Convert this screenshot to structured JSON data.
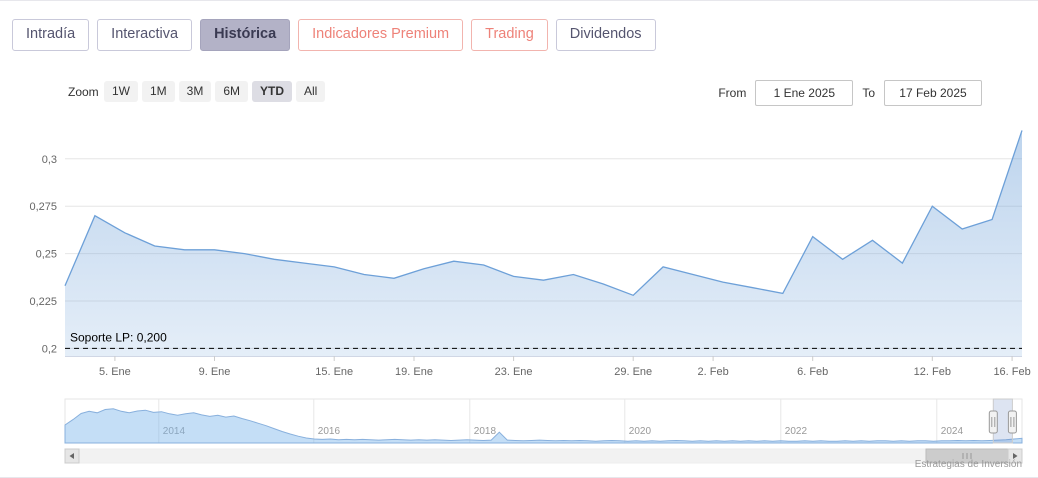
{
  "tabs": [
    {
      "label": "Intradía"
    },
    {
      "label": "Interactiva"
    },
    {
      "label": "Histórica",
      "active": true
    },
    {
      "label": "Indicadores Premium"
    },
    {
      "label": "Trading"
    },
    {
      "label": "Dividendos"
    }
  ],
  "range_selector": {
    "zoom_label": "Zoom",
    "buttons": [
      "1W",
      "1M",
      "3M",
      "6M",
      "YTD",
      "All"
    ],
    "selected": "YTD",
    "from_label": "From",
    "from_value": "1 Ene 2025",
    "to_label": "To",
    "to_value": "17 Feb 2025"
  },
  "credits": "Estrategias de Inversión",
  "colors": {
    "series_line": "#6da0d8",
    "series_fill": "#c9def2",
    "grid": "#e6e6e6",
    "axis_label": "#666666",
    "nav_label": "#999999",
    "support": "#000000",
    "tab_active_bg": "#b3b2c7",
    "salmon": "#ee8279",
    "purple": "#55556f"
  },
  "chart_data": {
    "type": "area",
    "title": "",
    "x": [
      "2 Ene",
      "3 Ene",
      "6 Ene",
      "7 Ene",
      "8 Ene",
      "9 Ene",
      "10 Ene",
      "13 Ene",
      "14 Ene",
      "15 Ene",
      "16 Ene",
      "17 Ene",
      "20 Ene",
      "21 Ene",
      "22 Ene",
      "23 Ene",
      "24 Ene",
      "27 Ene",
      "28 Ene",
      "29 Ene",
      "30 Ene",
      "31 Ene",
      "3 Feb",
      "4 Feb",
      "5 Feb",
      "6 Feb",
      "7 Feb",
      "10 Feb",
      "11 Feb",
      "12 Feb",
      "13 Feb",
      "14 Feb",
      "17 Feb"
    ],
    "values": [
      0.233,
      0.27,
      0.261,
      0.254,
      0.252,
      0.252,
      0.25,
      0.247,
      0.245,
      0.243,
      0.239,
      0.237,
      0.242,
      0.246,
      0.244,
      0.238,
      0.236,
      0.239,
      0.234,
      0.228,
      0.243,
      0.239,
      0.235,
      0.232,
      0.229,
      0.259,
      0.247,
      0.257,
      0.245,
      0.275,
      0.263,
      0.268,
      0.315
    ],
    "ylim": [
      0.196,
      0.321
    ],
    "yticks": [
      {
        "v": 0.2,
        "label": "0,2"
      },
      {
        "v": 0.225,
        "label": "0,225"
      },
      {
        "v": 0.25,
        "label": "0,25"
      },
      {
        "v": 0.275,
        "label": "0,275"
      },
      {
        "v": 0.3,
        "label": "0,3"
      }
    ],
    "xticks": [
      {
        "label": "5. Ene",
        "i": 1.67
      },
      {
        "label": "9. Ene",
        "i": 5
      },
      {
        "label": "15. Ene",
        "i": 9
      },
      {
        "label": "19. Ene",
        "i": 11.67
      },
      {
        "label": "23. Ene",
        "i": 15
      },
      {
        "label": "29. Ene",
        "i": 19
      },
      {
        "label": "2. Feb",
        "i": 21.67
      },
      {
        "label": "6. Feb",
        "i": 25
      },
      {
        "label": "12. Feb",
        "i": 29
      },
      {
        "label": "16. Feb",
        "i": 31.67
      }
    ],
    "support_line": {
      "value": 0.2,
      "label": "Soporte LP: 0,200"
    },
    "navigator": {
      "years": [
        {
          "label": "2014",
          "f": 0.098
        },
        {
          "label": "2016",
          "f": 0.26
        },
        {
          "label": "2018",
          "f": 0.423
        },
        {
          "label": "2020",
          "f": 0.585
        },
        {
          "label": "2022",
          "f": 0.748
        },
        {
          "label": "2024",
          "f": 0.911
        }
      ],
      "values": [
        0.5,
        0.65,
        0.82,
        0.88,
        0.84,
        0.93,
        0.95,
        0.88,
        0.84,
        0.89,
        0.91,
        0.85,
        0.87,
        0.81,
        0.77,
        0.81,
        0.84,
        0.78,
        0.74,
        0.77,
        0.72,
        0.75,
        0.68,
        0.62,
        0.55,
        0.48,
        0.4,
        0.32,
        0.25,
        0.19,
        0.14,
        0.11,
        0.1,
        0.11,
        0.09,
        0.1,
        0.09,
        0.1,
        0.09,
        0.08,
        0.09,
        0.1,
        0.09,
        0.08,
        0.09,
        0.08,
        0.09,
        0.08,
        0.07,
        0.08,
        0.09,
        0.08,
        0.07,
        0.08,
        0.3,
        0.08,
        0.07,
        0.06,
        0.07,
        0.08,
        0.07,
        0.06,
        0.07,
        0.06,
        0.07,
        0.06,
        0.05,
        0.06,
        0.07,
        0.06,
        0.05,
        0.06,
        0.05,
        0.06,
        0.05,
        0.06,
        0.07,
        0.06,
        0.05,
        0.06,
        0.05,
        0.06,
        0.05,
        0.06,
        0.05,
        0.06,
        0.05,
        0.06,
        0.05,
        0.06,
        0.05,
        0.05,
        0.06,
        0.05,
        0.06,
        0.05,
        0.05,
        0.06,
        0.05,
        0.06,
        0.05,
        0.06,
        0.06,
        0.05,
        0.06,
        0.05,
        0.06,
        0.06,
        0.05,
        0.06,
        0.06,
        0.07,
        0.06,
        0.07,
        0.06,
        0.07,
        0.08,
        0.09,
        0.11,
        0.13
      ],
      "selection": {
        "from": 0.97,
        "to": 0.99
      }
    }
  }
}
